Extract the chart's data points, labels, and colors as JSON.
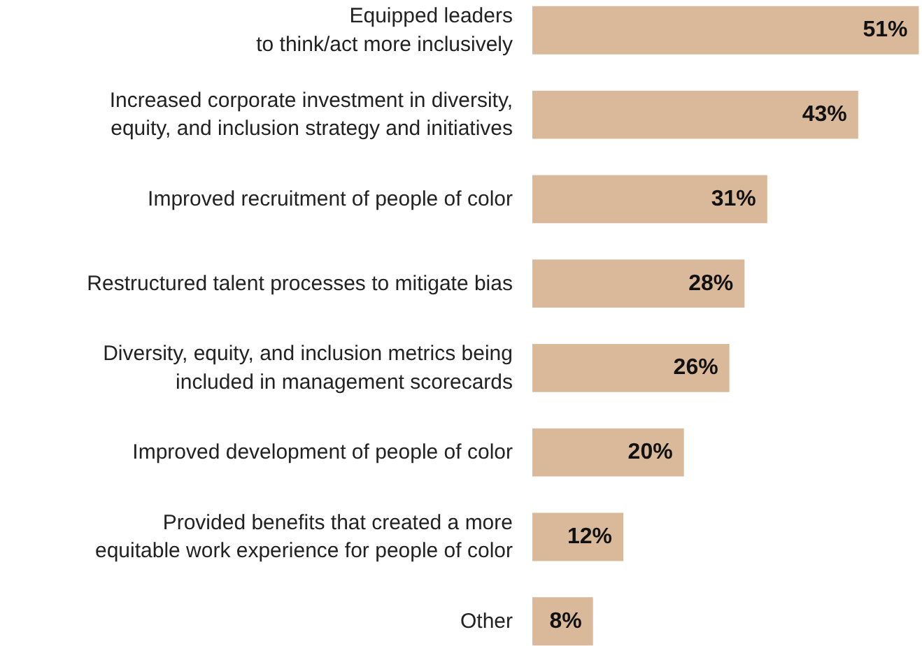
{
  "chart_data": {
    "type": "bar",
    "orientation": "horizontal",
    "color": "#d9b99a",
    "categories": [
      "Equipped leaders\nto think/act more inclusively",
      "Increased corporate investment in diversity,\nequity, and inclusion strategy and initiatives",
      "Improved recruitment of people of color",
      "Restructured talent processes to mitigate bias",
      "Diversity, equity, and inclusion metrics being\nincluded in management scorecards",
      "Improved development of people of color",
      "Provided benefits that created a more\nequitable work experience for people of color",
      "Other"
    ],
    "values": [
      51,
      43,
      31,
      28,
      26,
      20,
      12,
      8
    ],
    "value_labels": [
      "51%",
      "43%",
      "31%",
      "28%",
      "26%",
      "20%",
      "12%",
      "8%"
    ],
    "grid": false
  }
}
